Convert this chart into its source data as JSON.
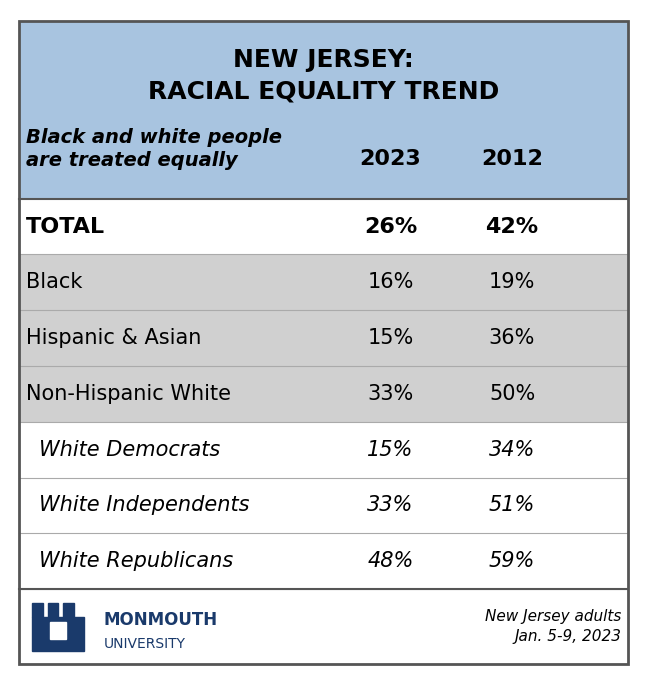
{
  "title_line1": "NEW JERSEY:",
  "title_line2": "RACIAL EQUALITY TREND",
  "subtitle": "Black and white people\nare treated equally",
  "col_headers": [
    "2023",
    "2012"
  ],
  "rows": [
    {
      "label": "TOTAL",
      "val2023": "26%",
      "val2012": "42%",
      "bold": true,
      "italic": false,
      "indent": false,
      "bg": "white"
    },
    {
      "label": "Black",
      "bold": false,
      "italic": false,
      "indent": false,
      "val2023": "16%",
      "val2012": "19%",
      "bg": "lightgray"
    },
    {
      "label": "Hispanic & Asian",
      "bold": false,
      "italic": false,
      "indent": false,
      "val2023": "15%",
      "val2012": "36%",
      "bg": "lightgray"
    },
    {
      "label": "Non-Hispanic White",
      "bold": false,
      "italic": false,
      "indent": false,
      "val2023": "33%",
      "val2012": "50%",
      "bg": "lightgray"
    },
    {
      "label": "White Democrats",
      "bold": false,
      "italic": true,
      "indent": true,
      "val2023": "15%",
      "val2012": "34%",
      "bg": "white"
    },
    {
      "label": "White Independents",
      "bold": false,
      "italic": true,
      "indent": true,
      "val2023": "33%",
      "val2012": "51%",
      "bg": "white"
    },
    {
      "label": "White Republicans",
      "bold": false,
      "italic": true,
      "indent": true,
      "val2023": "48%",
      "val2012": "59%",
      "bg": "white"
    }
  ],
  "header_bg": "#a8c4e0",
  "gray_bg": "#d0d0d0",
  "white_bg": "#ffffff",
  "outer_border_color": "#555555",
  "footer_note": "New Jersey adults\nJan. 5-9, 2023",
  "monmouth_text": "MONMOUTH\nUNIVERSITY",
  "title_fontsize": 18,
  "header_fontsize": 15,
  "data_fontsize": 15,
  "footer_fontsize": 11
}
